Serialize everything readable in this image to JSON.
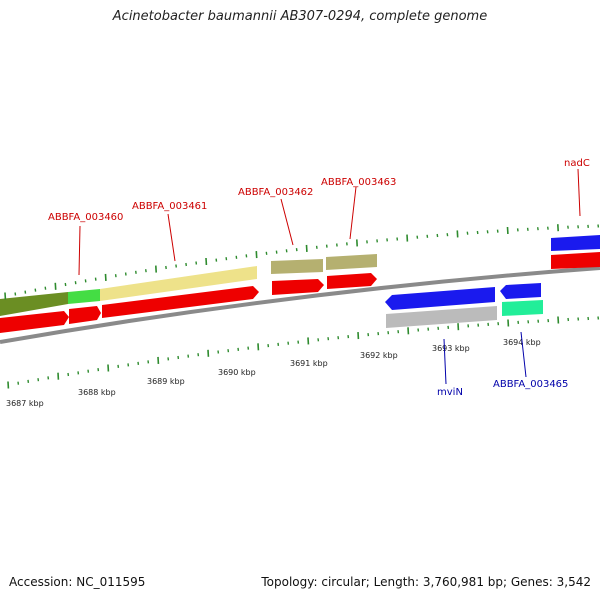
{
  "title": "Acinetobacter baumannii AB307-0294, complete genome",
  "footer": {
    "accession": "Accession: NC_011595",
    "summary": "Topology: circular; Length: 3,760,981 bp; Genes: 3,542"
  },
  "colors": {
    "backbone": "#8a8a8a",
    "tick": "#2e8b2e",
    "forward_label": "#cc0000",
    "reverse_label": "#0000aa",
    "cds": "#ee0000",
    "dark_olive": "#6b8e23",
    "light_green": "#44dd44",
    "pale_yellow": "#eee28a",
    "khaki": "#b5b070",
    "blue": "#1a1aee",
    "grey": "#bbbbbb",
    "aqua": "#22ee99"
  },
  "scale_labels": [
    "3687 kbp",
    "3688 kbp",
    "3689 kbp",
    "3690 kbp",
    "3691 kbp",
    "3692 kbp",
    "3693 kbp",
    "3694 kbp"
  ],
  "gene_labels": {
    "forward": [
      "ABBFA_003460",
      "ABBFA_003461",
      "ABBFA_003462",
      "ABBFA_003463",
      "nadC"
    ],
    "reverse": [
      "mviN",
      "ABBFA_003465"
    ]
  }
}
